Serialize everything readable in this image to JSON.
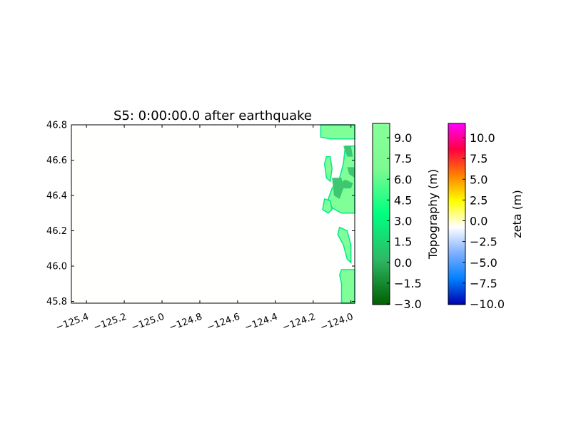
{
  "chart_data": {
    "type": "heatmap",
    "title": "S5: 0:00:00.0 after earthquake",
    "xlim": [
      -125.48,
      -123.98
    ],
    "ylim": [
      45.79,
      46.8
    ],
    "xticks": [
      {
        "value": -125.4,
        "label": "−125.4"
      },
      {
        "value": -125.2,
        "label": "−125.2"
      },
      {
        "value": -125.0,
        "label": "−125.0"
      },
      {
        "value": -124.8,
        "label": "−124.8"
      },
      {
        "value": -124.6,
        "label": "−124.6"
      },
      {
        "value": -124.4,
        "label": "−124.4"
      },
      {
        "value": -124.2,
        "label": "−124.2"
      },
      {
        "value": -124.0,
        "label": "−124.0"
      }
    ],
    "yticks": [
      {
        "value": 46.8,
        "label": "46.8"
      },
      {
        "value": 46.6,
        "label": "46.6"
      },
      {
        "value": 46.4,
        "label": "46.4"
      },
      {
        "value": 46.2,
        "label": "46.2"
      },
      {
        "value": 46.0,
        "label": "46.0"
      },
      {
        "value": 45.8,
        "label": "45.8"
      }
    ],
    "ocean_color": "#fffffd",
    "land_regions": [
      {
        "name": "north-spit",
        "color": "#80ff98",
        "points": [
          [
            -124.16,
            46.8
          ],
          [
            -123.98,
            46.8
          ],
          [
            -123.98,
            46.72
          ],
          [
            -124.11,
            46.72
          ],
          [
            -124.16,
            46.73
          ]
        ]
      },
      {
        "name": "middle-island",
        "color": "#80ff98",
        "points": [
          [
            -124.03,
            46.68
          ],
          [
            -123.98,
            46.68
          ],
          [
            -123.98,
            46.3
          ],
          [
            -124.05,
            46.3
          ],
          [
            -124.1,
            46.33
          ],
          [
            -124.12,
            46.38
          ],
          [
            -124.1,
            46.44
          ],
          [
            -124.06,
            46.5
          ],
          [
            -124.04,
            46.58
          ]
        ]
      },
      {
        "name": "spit-lobe",
        "color": "#80ff98",
        "points": [
          [
            -124.13,
            46.62
          ],
          [
            -124.11,
            46.62
          ],
          [
            -124.1,
            46.55
          ],
          [
            -124.11,
            46.48
          ],
          [
            -124.13,
            46.5
          ],
          [
            -124.14,
            46.58
          ]
        ]
      },
      {
        "name": "spit-tail",
        "color": "#80ff98",
        "points": [
          [
            -124.14,
            46.38
          ],
          [
            -124.11,
            46.37
          ],
          [
            -124.1,
            46.32
          ],
          [
            -124.12,
            46.3
          ],
          [
            -124.15,
            46.32
          ]
        ]
      },
      {
        "name": "central-shore",
        "color": "#80ff98",
        "points": [
          [
            -124.06,
            46.22
          ],
          [
            -124.02,
            46.2
          ],
          [
            -124.0,
            46.12
          ],
          [
            -124.0,
            46.02
          ],
          [
            -124.02,
            46.04
          ],
          [
            -124.04,
            46.12
          ],
          [
            -124.07,
            46.18
          ]
        ]
      },
      {
        "name": "south-shore",
        "color": "#80ff98",
        "points": [
          [
            -124.05,
            45.98
          ],
          [
            -123.98,
            45.98
          ],
          [
            -123.98,
            45.79
          ],
          [
            -124.05,
            45.79
          ],
          [
            -124.05,
            45.9
          ],
          [
            -124.06,
            45.95
          ]
        ]
      }
    ],
    "shallow_regions": [
      {
        "name": "inner-bay-1",
        "color": "#3cc870",
        "points": [
          [
            -124.1,
            46.5
          ],
          [
            -124.05,
            46.5
          ],
          [
            -124.04,
            46.44
          ],
          [
            -124.06,
            46.38
          ],
          [
            -124.09,
            46.4
          ]
        ]
      },
      {
        "name": "inner-bay-2",
        "color": "#3cc870",
        "points": [
          [
            -124.06,
            46.47
          ],
          [
            -124.04,
            46.44
          ],
          [
            -124.0,
            46.44
          ],
          [
            -123.99,
            46.47
          ],
          [
            -124.03,
            46.49
          ]
        ]
      },
      {
        "name": "upper-channel",
        "color": "#3cc870",
        "points": [
          [
            -124.04,
            46.68
          ],
          [
            -124.0,
            46.68
          ],
          [
            -123.99,
            46.62
          ],
          [
            -124.02,
            46.62
          ]
        ]
      },
      {
        "name": "upper-channel-2",
        "color": "#3cc870",
        "points": [
          [
            -124.02,
            46.56
          ],
          [
            -123.98,
            46.56
          ],
          [
            -123.98,
            46.5
          ],
          [
            -124.01,
            46.52
          ]
        ]
      }
    ],
    "colorbars": [
      {
        "label": "Topography (m)",
        "ticks": [
          "9.0",
          "7.5",
          "6.0",
          "4.5",
          "3.0",
          "1.5",
          "0.0",
          "−1.5",
          "−3.0"
        ],
        "colors": [
          "#88ff99",
          "#7dfa92",
          "#00ff80",
          "#2fb866",
          "#006000"
        ]
      },
      {
        "label": "zeta (m)",
        "ticks": [
          "10.0",
          "7.5",
          "5.0",
          "2.5",
          "0.0",
          "−2.5",
          "−5.0",
          "−7.5",
          "−10.0"
        ],
        "colors": [
          "#ff00ff",
          "#ff0040",
          "#ff8000",
          "#ffff00",
          "#ffffff",
          "#80b0ff",
          "#0080ff",
          "#0000b0"
        ]
      }
    ]
  }
}
